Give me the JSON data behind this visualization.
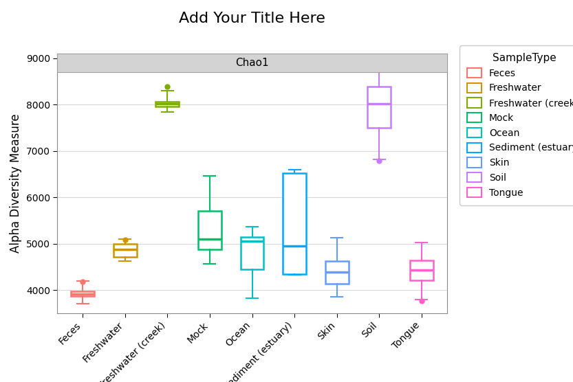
{
  "title": "Add Your Title Here",
  "subtitle": "Chao1",
  "xlabel": "SampleType",
  "ylabel": "Alpha Diversity Measure",
  "ylim": [
    3500,
    9100
  ],
  "yticks": [
    4000,
    5000,
    6000,
    7000,
    8000,
    9000
  ],
  "categories": [
    "Feces",
    "Freshwater",
    "Freshwater (creek)",
    "Mock",
    "Ocean",
    "Sediment (estuary)",
    "Skin",
    "Soil",
    "Tongue"
  ],
  "colors": {
    "Feces": "#F8766D",
    "Freshwater": "#CD9600",
    "Freshwater (creek)": "#7CAE00",
    "Mock": "#00BE67",
    "Ocean": "#00BFC4",
    "Sediment (estuary)": "#00A9FF",
    "Skin": "#619CFF",
    "Soil": "#C77CFF",
    "Tongue": "#FF61CC"
  },
  "box_data": {
    "Feces": {
      "q1": 3870,
      "median": 3920,
      "q3": 3980,
      "whislo": 3700,
      "whishi": 4200,
      "fliers": [
        4180
      ]
    },
    "Freshwater": {
      "q1": 4720,
      "median": 4880,
      "q3": 5000,
      "whislo": 4620,
      "whishi": 5100,
      "fliers": [
        5090
      ]
    },
    "Freshwater (creek)": {
      "q1": 7960,
      "median": 8010,
      "q3": 8060,
      "whislo": 7840,
      "whishi": 8300,
      "fliers": [
        8380
      ]
    },
    "Mock": {
      "q1": 4880,
      "median": 5100,
      "q3": 5700,
      "whislo": 4560,
      "whishi": 6460,
      "fliers": []
    },
    "Ocean": {
      "q1": 4450,
      "median": 5050,
      "q3": 5150,
      "whislo": 3830,
      "whishi": 5360,
      "fliers": []
    },
    "Sediment (estuary)": {
      "q1": 4350,
      "median": 4950,
      "q3": 6520,
      "whislo": 4330,
      "whishi": 6600,
      "fliers": []
    },
    "Skin": {
      "q1": 4140,
      "median": 4390,
      "q3": 4620,
      "whislo": 3850,
      "whishi": 5130,
      "fliers": []
    },
    "Soil": {
      "q1": 7500,
      "median": 8010,
      "q3": 8380,
      "whislo": 6820,
      "whishi": 8730,
      "fliers": [
        6790
      ]
    },
    "Tongue": {
      "q1": 4210,
      "median": 4430,
      "q3": 4640,
      "whislo": 3790,
      "whishi": 5020,
      "fliers": [
        3760
      ]
    }
  },
  "background_color": "#ffffff",
  "grid_color": "#d8d8d8",
  "panel_bg": "#f5f5f5",
  "banner_color": "#d3d3d3",
  "banner_edge": "#a0a0a0",
  "title_fontsize": 16,
  "axis_label_fontsize": 12,
  "tick_fontsize": 10,
  "legend_fontsize": 10
}
